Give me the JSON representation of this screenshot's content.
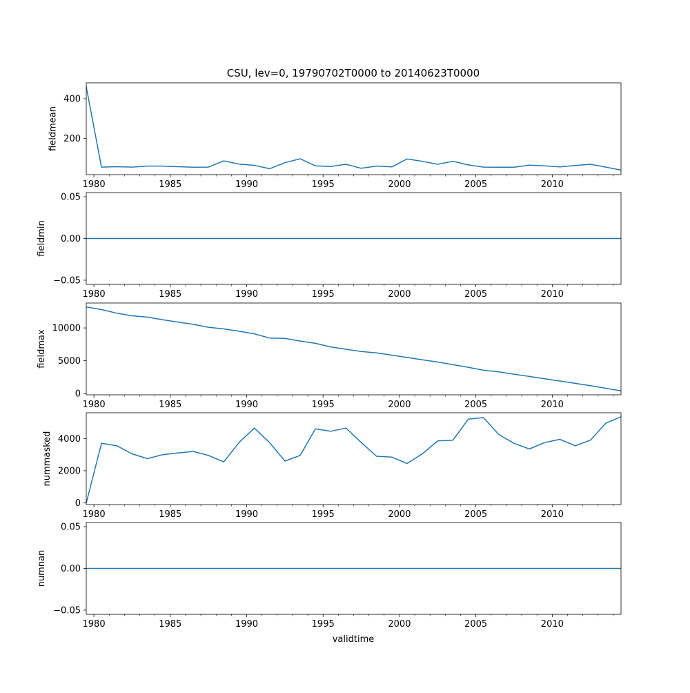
{
  "figure": {
    "title": "CSU, lev=0, 19790702T0000 to 20140623T0000",
    "xlabel": "validtime",
    "line_color": "#1f77b4"
  },
  "chart_data": [
    {
      "type": "line",
      "ylabel": "fieldmean",
      "xlim": [
        1979.5,
        2014.5
      ],
      "ylim": [
        18,
        480
      ],
      "xticks": [
        1980,
        1985,
        1990,
        1995,
        2000,
        2005,
        2010
      ],
      "xtick_labels": [
        "1980",
        "1985",
        "1990",
        "1995",
        "2000",
        "2005",
        "2010"
      ],
      "yticks": [
        200,
        400
      ],
      "ytick_labels": [
        "200",
        "400"
      ],
      "x": [
        1979.5,
        1980.5,
        1981.5,
        1982.5,
        1983.5,
        1984.5,
        1985.5,
        1986.5,
        1987.5,
        1988.5,
        1989.5,
        1990.5,
        1991.5,
        1992.5,
        1993.5,
        1994.5,
        1995.5,
        1996.5,
        1997.5,
        1998.5,
        1999.5,
        2000.5,
        2001.5,
        2002.5,
        2003.5,
        2004.5,
        2005.5,
        2006.5,
        2007.5,
        2008.5,
        2009.5,
        2010.5,
        2011.5,
        2012.5,
        2013.5,
        2014.5
      ],
      "values": [
        460,
        56,
        58,
        56,
        61,
        61,
        58,
        55,
        56,
        87,
        71,
        65,
        48,
        78,
        98,
        62,
        59,
        70,
        50,
        61,
        57,
        97,
        85,
        70,
        85,
        67,
        56,
        55,
        55,
        66,
        62,
        57,
        64,
        70,
        56,
        41
      ]
    },
    {
      "type": "line",
      "ylabel": "fieldmin",
      "xlim": [
        1979.5,
        2014.5
      ],
      "ylim": [
        -0.055,
        0.055
      ],
      "xticks": [
        1980,
        1985,
        1990,
        1995,
        2000,
        2005,
        2010
      ],
      "xtick_labels": [
        "1980",
        "1985",
        "1990",
        "1995",
        "2000",
        "2005",
        "2010"
      ],
      "yticks": [
        -0.05,
        0.0,
        0.05
      ],
      "ytick_labels": [
        "−0.05",
        "0.00",
        "0.05"
      ],
      "x": [
        1979.5,
        2014.5
      ],
      "values": [
        0,
        0
      ]
    },
    {
      "type": "line",
      "ylabel": "fieldmax",
      "xlim": [
        1979.5,
        2014.5
      ],
      "ylim": [
        -200,
        13800
      ],
      "xticks": [
        1980,
        1985,
        1990,
        1995,
        2000,
        2005,
        2010
      ],
      "xtick_labels": [
        "1980",
        "1985",
        "1990",
        "1995",
        "2000",
        "2005",
        "2010"
      ],
      "yticks": [
        0,
        5000,
        10000
      ],
      "ytick_labels": [
        "0",
        "5000",
        "10000"
      ],
      "x": [
        1979.5,
        1980.5,
        1981.5,
        1982.5,
        1983.5,
        1984.5,
        1985.5,
        1986.5,
        1987.5,
        1988.5,
        1989.5,
        1990.5,
        1991.5,
        1992.5,
        1993.5,
        1994.5,
        1995.5,
        1996.5,
        1997.5,
        1998.5,
        1999.5,
        2000.5,
        2001.5,
        2002.5,
        2003.5,
        2004.5,
        2005.5,
        2006.5,
        2007.5,
        2008.5,
        2009.5,
        2010.5,
        2011.5,
        2012.5,
        2013.5,
        2014.5
      ],
      "values": [
        13200,
        12800,
        12250,
        11850,
        11650,
        11250,
        10900,
        10550,
        10100,
        9850,
        9500,
        9100,
        8450,
        8400,
        8000,
        7650,
        7100,
        6750,
        6400,
        6200,
        5850,
        5500,
        5150,
        4800,
        4400,
        4000,
        3550,
        3300,
        2950,
        2600,
        2250,
        1900,
        1550,
        1200,
        800,
        400
      ]
    },
    {
      "type": "line",
      "ylabel": "nummasked",
      "xlim": [
        1979.5,
        2014.5
      ],
      "ylim": [
        -100,
        5600
      ],
      "xticks": [
        1980,
        1985,
        1990,
        1995,
        2000,
        2005,
        2010
      ],
      "xtick_labels": [
        "1980",
        "1985",
        "1990",
        "1995",
        "2000",
        "2005",
        "2010"
      ],
      "yticks": [
        0,
        2000,
        4000
      ],
      "ytick_labels": [
        "0",
        "2000",
        "4000"
      ],
      "x": [
        1979.5,
        1980.5,
        1981.5,
        1982.5,
        1983.5,
        1984.5,
        1985.5,
        1986.5,
        1987.5,
        1988.5,
        1989.5,
        1990.5,
        1991.5,
        1992.5,
        1993.5,
        1994.5,
        1995.5,
        1996.5,
        1997.5,
        1998.5,
        1999.5,
        2000.5,
        2001.5,
        2002.5,
        2003.5,
        2004.5,
        2005.5,
        2006.5,
        2007.5,
        2008.5,
        2009.5,
        2010.5,
        2011.5,
        2012.5,
        2013.5,
        2014.5
      ],
      "values": [
        0,
        3700,
        3550,
        3050,
        2750,
        3000,
        3100,
        3200,
        2950,
        2550,
        3750,
        4650,
        3750,
        2600,
        2950,
        4600,
        4450,
        4650,
        3750,
        2900,
        2850,
        2450,
        3050,
        3850,
        3900,
        5200,
        5300,
        4250,
        3700,
        3350,
        3750,
        3950,
        3550,
        3900,
        4950,
        5350
      ]
    },
    {
      "type": "line",
      "ylabel": "numnan",
      "xlim": [
        1979.5,
        2014.5
      ],
      "ylim": [
        -0.055,
        0.055
      ],
      "xticks": [
        1980,
        1985,
        1990,
        1995,
        2000,
        2005,
        2010
      ],
      "xtick_labels": [
        "1980",
        "1985",
        "1990",
        "1995",
        "2000",
        "2005",
        "2010"
      ],
      "yticks": [
        -0.05,
        0.0,
        0.05
      ],
      "ytick_labels": [
        "−0.05",
        "0.00",
        "0.05"
      ],
      "x": [
        1979.5,
        2014.5
      ],
      "values": [
        0,
        0
      ]
    }
  ]
}
